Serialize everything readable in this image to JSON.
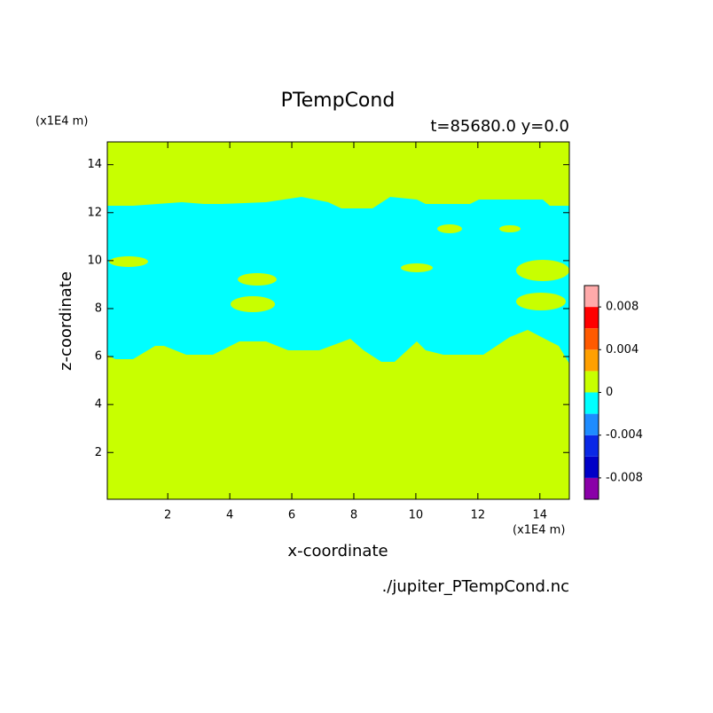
{
  "chart_data": {
    "type": "contour",
    "title": "PTempCond",
    "subtitle": "t=85680.0 y=0.0",
    "x_label": "x-coordinate",
    "y_label": "z-coordinate",
    "x_unit": "(x1E4 m)",
    "y_unit": "(x1E4 m)",
    "source": "./jupiter_PTempCond.nc",
    "xlim": [
      0.05,
      14.95
    ],
    "ylim": [
      0.05,
      14.95
    ],
    "xticks": [
      2,
      4,
      6,
      8,
      10,
      12,
      14
    ],
    "yticks": [
      2,
      4,
      6,
      8,
      10,
      12,
      14
    ],
    "colorbar": {
      "levels": [
        -0.01,
        -0.008,
        -0.006,
        -0.004,
        -0.002,
        0,
        0.002,
        0.004,
        0.006,
        0.008,
        0.01
      ],
      "colors": [
        "#8a00a8",
        "#0000c8",
        "#0a28e6",
        "#1e8cff",
        "#00ffff",
        "#c8ff00",
        "#ffa000",
        "#ff5a00",
        "#ff0000",
        "#ffaaaa"
      ],
      "ticks": [
        -0.008,
        -0.004,
        0,
        0.004,
        0.008
      ]
    }
  }
}
